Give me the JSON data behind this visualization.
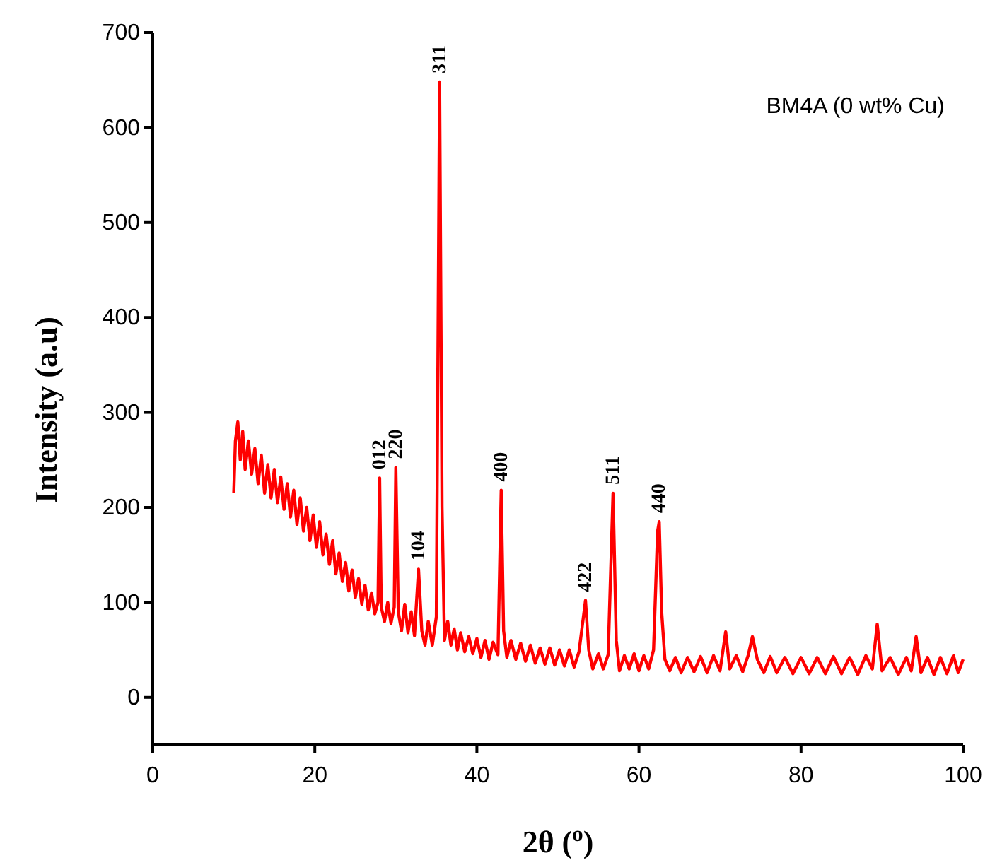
{
  "chart_data": {
    "type": "line",
    "xlabel": "2θ ($^{o}$)",
    "ylabel": "Intensity (a.u)",
    "xlim": [
      0,
      100
    ],
    "xticks": [
      0,
      20,
      40,
      60,
      80,
      100
    ],
    "ylim": [
      -50,
      700
    ],
    "yticks": [
      0,
      100,
      200,
      300,
      400,
      500,
      600,
      700
    ],
    "grid": false,
    "marker": "none",
    "line_style": "solid",
    "annotations": [
      "BM4A (0 wt% Cu)",
      {
        "text": "012",
        "x": 28.0,
        "y": 231
      },
      {
        "text": "220",
        "x": 30.0,
        "y": 242
      },
      {
        "text": "104",
        "x": 32.8,
        "y": 135
      },
      {
        "text": "311",
        "x": 35.4,
        "y": 648
      },
      {
        "text": "400",
        "x": 43.0,
        "y": 218
      },
      {
        "text": "422",
        "x": 53.4,
        "y": 102
      },
      {
        "text": "511",
        "x": 56.8,
        "y": 215
      },
      {
        "text": "440",
        "x": 62.5,
        "y": 185
      }
    ],
    "series": [
      {
        "color": "#ff0000",
        "x": [
          10.0,
          10.2,
          10.5,
          10.8,
          11.1,
          11.4,
          11.8,
          12.2,
          12.6,
          13.0,
          13.4,
          13.8,
          14.2,
          14.6,
          15.0,
          15.4,
          15.8,
          16.2,
          16.6,
          17.0,
          17.4,
          17.8,
          18.2,
          18.6,
          19.0,
          19.4,
          19.8,
          20.2,
          20.6,
          21.0,
          21.4,
          21.8,
          22.2,
          22.6,
          23.0,
          23.4,
          23.8,
          24.2,
          24.6,
          25.0,
          25.4,
          25.8,
          26.2,
          26.6,
          27.0,
          27.4,
          27.8,
          28.0,
          28.2,
          28.6,
          29.0,
          29.4,
          29.8,
          30.0,
          30.3,
          30.7,
          31.1,
          31.5,
          31.9,
          32.3,
          32.8,
          33.2,
          33.6,
          34.0,
          34.5,
          35.0,
          35.4,
          35.7,
          36.0,
          36.4,
          36.8,
          37.2,
          37.6,
          38.0,
          38.5,
          39.0,
          39.5,
          40.0,
          40.5,
          41.0,
          41.5,
          42.0,
          42.6,
          43.0,
          43.3,
          43.7,
          44.2,
          44.8,
          45.4,
          46.0,
          46.6,
          47.2,
          47.8,
          48.4,
          49.0,
          49.6,
          50.2,
          50.8,
          51.4,
          52.0,
          52.6,
          53.4,
          53.8,
          54.3,
          55.0,
          55.6,
          56.2,
          56.8,
          57.2,
          57.6,
          58.2,
          58.8,
          59.4,
          60.0,
          60.6,
          61.2,
          61.8,
          62.3,
          62.5,
          62.8,
          63.2,
          63.8,
          64.5,
          65.2,
          66.0,
          66.8,
          67.6,
          68.4,
          69.2,
          70.0,
          70.7,
          71.2,
          72.0,
          72.8,
          73.5,
          74.0,
          74.6,
          75.4,
          76.2,
          77.0,
          78.0,
          79.0,
          80.0,
          81.0,
          82.0,
          83.0,
          84.0,
          85.0,
          86.0,
          87.0,
          88.0,
          88.8,
          89.4,
          90.0,
          91.0,
          92.0,
          93.0,
          93.6,
          94.2,
          94.8,
          95.6,
          96.4,
          97.2,
          98.0,
          98.8,
          99.4,
          100.0
        ],
        "values": [
          215,
          270,
          290,
          250,
          280,
          240,
          270,
          235,
          262,
          225,
          255,
          215,
          245,
          210,
          240,
          205,
          232,
          198,
          225,
          190,
          218,
          182,
          210,
          175,
          200,
          165,
          192,
          158,
          185,
          150,
          172,
          140,
          165,
          130,
          152,
          122,
          142,
          112,
          134,
          105,
          125,
          98,
          118,
          92,
          110,
          88,
          100,
          231,
          95,
          80,
          100,
          78,
          95,
          242,
          90,
          70,
          98,
          68,
          90,
          65,
          135,
          70,
          55,
          80,
          55,
          85,
          648,
          200,
          60,
          80,
          55,
          72,
          50,
          68,
          48,
          64,
          46,
          62,
          42,
          60,
          40,
          58,
          45,
          218,
          70,
          42,
          60,
          40,
          57,
          38,
          55,
          36,
          52,
          35,
          52,
          34,
          50,
          33,
          50,
          32,
          48,
          102,
          50,
          30,
          46,
          30,
          45,
          215,
          60,
          28,
          44,
          30,
          46,
          28,
          44,
          30,
          50,
          175,
          185,
          90,
          40,
          28,
          42,
          26,
          42,
          27,
          43,
          26,
          44,
          28,
          69,
          30,
          44,
          27,
          45,
          64,
          40,
          26,
          43,
          26,
          42,
          25,
          42,
          25,
          42,
          25,
          43,
          25,
          42,
          24,
          44,
          30,
          77,
          28,
          42,
          24,
          42,
          28,
          64,
          26,
          42,
          24,
          42,
          25,
          44,
          26,
          40
        ]
      }
    ]
  }
}
